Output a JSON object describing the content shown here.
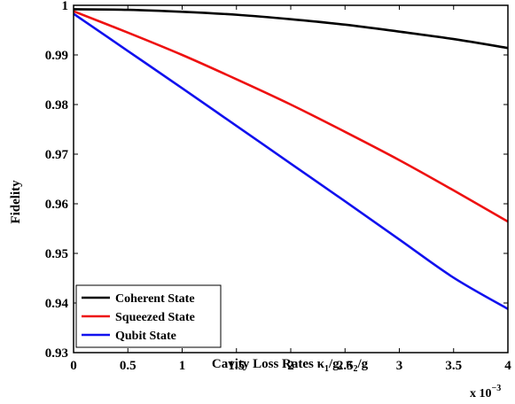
{
  "chart_data": {
    "type": "line",
    "title": "",
    "xlabel_main": "Cavity Loss Rates κ",
    "xlabel_parts": [
      "Cavity Loss Rates κ",
      "1",
      "/g, κ",
      "2",
      "/g"
    ],
    "ylabel": "Fidelity",
    "x_scale_label": "x 10",
    "x_scale_exp": "−3",
    "xlim": [
      0,
      4
    ],
    "ylim": [
      0.93,
      1.0
    ],
    "x_ticks": [
      0,
      0.5,
      1,
      1.5,
      2,
      2.5,
      3,
      3.5,
      4
    ],
    "x_tick_labels": [
      "0",
      "0.5",
      "1",
      "1.5",
      "2",
      "2.5",
      "3",
      "3.5",
      "4"
    ],
    "y_ticks": [
      0.93,
      0.94,
      0.95,
      0.96,
      0.97,
      0.98,
      0.99,
      1.0
    ],
    "y_tick_labels": [
      "0.93",
      "0.94",
      "0.95",
      "0.96",
      "0.97",
      "0.98",
      "0.99",
      "1"
    ],
    "grid": false,
    "legend_position": "bottom-left",
    "x": [
      0,
      0.5,
      1,
      1.5,
      2,
      2.5,
      3,
      3.5,
      4
    ],
    "series": [
      {
        "name": "Coherent State",
        "color": "#000000",
        "values": [
          0.9992,
          0.9991,
          0.9987,
          0.9981,
          0.9972,
          0.9961,
          0.9947,
          0.9932,
          0.9914
        ]
      },
      {
        "name": "Squeezed State",
        "color": "#ee1111",
        "values": [
          0.9988,
          0.9945,
          0.99,
          0.9851,
          0.98,
          0.9745,
          0.9688,
          0.9627,
          0.9564
        ]
      },
      {
        "name": "Qubit State",
        "color": "#1111ee",
        "values": [
          0.9983,
          0.9908,
          0.9833,
          0.9757,
          0.9681,
          0.9605,
          0.9528,
          0.9451,
          0.9388
        ]
      }
    ]
  }
}
